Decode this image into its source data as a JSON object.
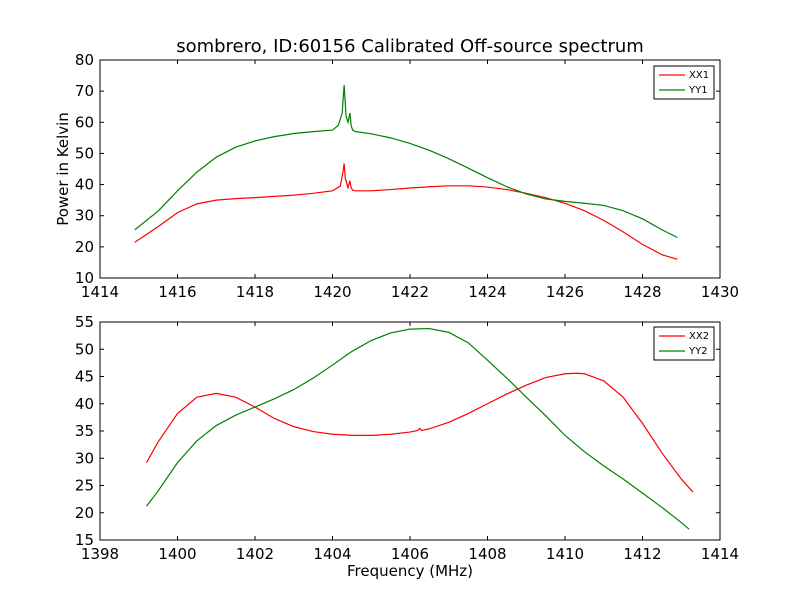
{
  "figure": {
    "title": "sombrero, ID:60156 Calibrated Off-source spectrum"
  },
  "chart_data": [
    {
      "type": "line",
      "title": "sombrero, ID:60156 Calibrated Off-source spectrum",
      "xlabel": "",
      "ylabel": "Power in Kelvin",
      "xlim": [
        1414,
        1430
      ],
      "ylim": [
        10,
        80
      ],
      "xticks": [
        1414,
        1416,
        1418,
        1420,
        1422,
        1424,
        1426,
        1428,
        1430
      ],
      "yticks": [
        10,
        20,
        30,
        40,
        50,
        60,
        70,
        80
      ],
      "grid": false,
      "legend_position": "top-right",
      "series": [
        {
          "name": "XX1",
          "color": "#ff0000",
          "x": [
            1414.9,
            1415.5,
            1416.0,
            1416.5,
            1417.0,
            1417.5,
            1418.0,
            1418.5,
            1419.0,
            1419.5,
            1420.0,
            1420.2,
            1420.27,
            1420.3,
            1420.33,
            1420.4,
            1420.45,
            1420.48,
            1420.52,
            1420.6,
            1421.0,
            1421.5,
            1422.0,
            1422.5,
            1423.0,
            1423.5,
            1424.0,
            1424.5,
            1425.0,
            1425.5,
            1426.0,
            1426.5,
            1427.0,
            1427.5,
            1428.0,
            1428.5,
            1428.9
          ],
          "y": [
            21.5,
            26.5,
            31.0,
            33.8,
            35.0,
            35.5,
            35.8,
            36.2,
            36.6,
            37.2,
            38.0,
            39.5,
            44.0,
            46.8,
            42.0,
            39.0,
            41.2,
            39.0,
            38.2,
            38.0,
            38.0,
            38.4,
            38.9,
            39.3,
            39.6,
            39.6,
            39.2,
            38.4,
            37.2,
            35.8,
            34.0,
            31.6,
            28.5,
            24.8,
            20.8,
            17.5,
            16.0
          ]
        },
        {
          "name": "YY1",
          "color": "#008000",
          "x": [
            1414.9,
            1415.5,
            1416.0,
            1416.5,
            1417.0,
            1417.5,
            1418.0,
            1418.5,
            1419.0,
            1419.5,
            1420.0,
            1420.15,
            1420.25,
            1420.3,
            1420.35,
            1420.4,
            1420.45,
            1420.48,
            1420.52,
            1420.6,
            1421.0,
            1421.5,
            1422.0,
            1422.5,
            1423.0,
            1423.5,
            1424.0,
            1424.5,
            1425.0,
            1425.5,
            1426.0,
            1426.5,
            1427.0,
            1427.5,
            1428.0,
            1428.5,
            1428.9
          ],
          "y": [
            25.5,
            31.5,
            38.0,
            44.0,
            48.8,
            52.0,
            54.0,
            55.4,
            56.4,
            57.0,
            57.5,
            59.0,
            63.0,
            72.0,
            62.0,
            60.0,
            63.0,
            59.0,
            57.5,
            57.0,
            56.3,
            55.0,
            53.2,
            51.0,
            48.3,
            45.3,
            42.2,
            39.3,
            37.0,
            35.4,
            34.6,
            34.0,
            33.3,
            31.6,
            29.0,
            25.5,
            23.0
          ]
        }
      ]
    },
    {
      "type": "line",
      "title": "",
      "xlabel": "Frequency (MHz)",
      "ylabel": "",
      "xlim": [
        1398,
        1414
      ],
      "ylim": [
        15,
        55
      ],
      "xticks": [
        1398,
        1400,
        1402,
        1404,
        1406,
        1408,
        1410,
        1412,
        1414
      ],
      "yticks": [
        15,
        20,
        25,
        30,
        35,
        40,
        45,
        50,
        55
      ],
      "grid": false,
      "legend_position": "top-right",
      "series": [
        {
          "name": "XX2",
          "color": "#ff0000",
          "x": [
            1399.2,
            1399.5,
            1400.0,
            1400.5,
            1401.0,
            1401.5,
            1402.0,
            1402.5,
            1403.0,
            1403.5,
            1404.0,
            1404.5,
            1405.0,
            1405.5,
            1406.0,
            1406.2,
            1406.25,
            1406.3,
            1406.5,
            1407.0,
            1407.5,
            1408.0,
            1408.5,
            1409.0,
            1409.5,
            1410.0,
            1410.3,
            1410.5,
            1411.0,
            1411.5,
            1412.0,
            1412.5,
            1413.0,
            1413.3
          ],
          "y": [
            29.2,
            33.0,
            38.2,
            41.2,
            41.9,
            41.2,
            39.4,
            37.3,
            35.8,
            34.9,
            34.4,
            34.2,
            34.2,
            34.4,
            34.8,
            35.1,
            35.5,
            35.1,
            35.4,
            36.6,
            38.2,
            40.0,
            41.8,
            43.4,
            44.8,
            45.5,
            45.6,
            45.5,
            44.2,
            41.2,
            36.4,
            31.0,
            26.2,
            23.8
          ],
          "marker_note": ""
        },
        {
          "name": "YY2",
          "color": "#008000",
          "x": [
            1399.2,
            1399.5,
            1400.0,
            1400.5,
            1401.0,
            1401.5,
            1402.0,
            1402.5,
            1403.0,
            1403.5,
            1404.0,
            1404.5,
            1405.0,
            1405.5,
            1406.0,
            1406.5,
            1407.0,
            1407.5,
            1408.0,
            1408.5,
            1409.0,
            1409.5,
            1410.0,
            1410.5,
            1411.0,
            1411.5,
            1412.0,
            1412.5,
            1413.0,
            1413.2
          ],
          "y": [
            21.2,
            24.0,
            29.2,
            33.2,
            36.0,
            37.9,
            39.4,
            40.9,
            42.6,
            44.7,
            47.1,
            49.6,
            51.6,
            53.0,
            53.7,
            53.8,
            53.1,
            51.2,
            48.0,
            44.7,
            41.2,
            37.8,
            34.2,
            31.2,
            28.6,
            26.2,
            23.6,
            21.0,
            18.2,
            17.0
          ]
        }
      ]
    }
  ]
}
